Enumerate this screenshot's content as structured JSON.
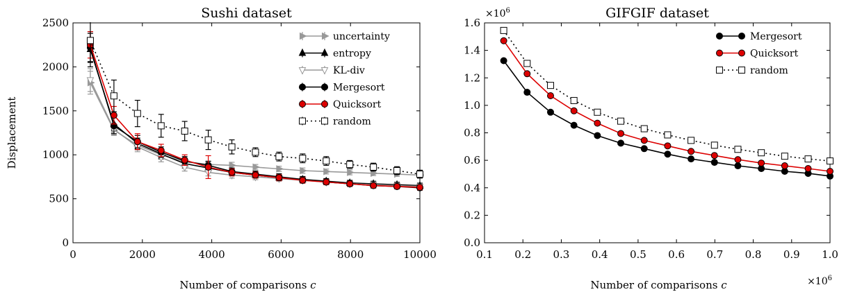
{
  "chart_data": [
    {
      "type": "line",
      "title": "Sushi dataset",
      "xlabel": "Number of comparisons",
      "xlabel_var": "c",
      "ylabel": "Displacement",
      "xlim": [
        0,
        10000
      ],
      "ylim": [
        0,
        2500
      ],
      "xticks": [
        0,
        2000,
        4000,
        6000,
        8000,
        10000
      ],
      "yticks": [
        0,
        500,
        1000,
        1500,
        2000,
        2500
      ],
      "grid": false,
      "legend_position": "top-right",
      "x": [
        500,
        1180,
        1860,
        2540,
        3220,
        3900,
        4580,
        5260,
        5940,
        6620,
        7300,
        7980,
        8660,
        9340,
        10000
      ],
      "series": [
        {
          "name": "uncertainty",
          "marker": "triangle-right",
          "color": "#999999",
          "line": "solid",
          "values": [
            1820,
            1280,
            1110,
            1000,
            920,
            890,
            880,
            860,
            840,
            820,
            810,
            800,
            790,
            780,
            770
          ],
          "err": [
            130,
            60,
            55,
            50,
            45,
            40,
            35,
            30,
            30,
            30,
            28,
            28,
            26,
            26,
            25
          ]
        },
        {
          "name": "entropy",
          "marker": "triangle-up",
          "color": "#000000",
          "line": "solid",
          "values": [
            2200,
            1350,
            1130,
            1010,
            900,
            850,
            800,
            770,
            740,
            720,
            700,
            680,
            670,
            660,
            650
          ],
          "err": [
            200,
            70,
            60,
            55,
            50,
            45,
            40,
            35,
            35,
            33,
            30,
            30,
            30,
            28,
            28
          ]
        },
        {
          "name": "KL-div",
          "marker": "triangle-down",
          "color": "#999999",
          "line": "solid",
          "values": [
            1850,
            1290,
            1090,
            970,
            860,
            800,
            770,
            750,
            730,
            710,
            690,
            670,
            660,
            650,
            640
          ],
          "err": [
            130,
            60,
            55,
            50,
            45,
            40,
            35,
            33,
            30,
            30,
            28,
            28,
            26,
            26,
            25
          ]
        },
        {
          "name": "Mergesort",
          "marker": "circle",
          "color": "#000000",
          "line": "solid",
          "values": [
            2220,
            1330,
            1150,
            1030,
            930,
            880,
            810,
            780,
            750,
            720,
            690,
            670,
            650,
            640,
            625
          ],
          "err": [
            160,
            90,
            70,
            60,
            50,
            45,
            40,
            35,
            35,
            33,
            30,
            30,
            28,
            28,
            28
          ]
        },
        {
          "name": "Quicksort",
          "marker": "circle",
          "color": "#dd0000",
          "line": "solid",
          "values": [
            2250,
            1450,
            1150,
            1050,
            940,
            860,
            800,
            770,
            740,
            710,
            690,
            670,
            650,
            640,
            630
          ],
          "err": [
            150,
            100,
            90,
            70,
            60,
            130,
            40,
            35,
            35,
            33,
            30,
            30,
            28,
            28,
            28
          ]
        },
        {
          "name": "random",
          "marker": "square-open",
          "color": "#000000",
          "line": "dotted",
          "values": [
            2300,
            1670,
            1470,
            1330,
            1270,
            1170,
            1090,
            1030,
            980,
            960,
            930,
            890,
            860,
            820,
            780
          ],
          "err": [
            250,
            180,
            150,
            130,
            110,
            110,
            80,
            50,
            50,
            50,
            50,
            45,
            45,
            45,
            45
          ]
        }
      ]
    },
    {
      "type": "line",
      "title": "GIFGIF dataset",
      "xlabel": "Number of comparisons",
      "xlabel_var": "c",
      "ylabel": "",
      "x_multiplier": "×10",
      "x_multiplier_exp": "6",
      "y_multiplier": "×10",
      "y_multiplier_exp": "6",
      "xlim": [
        0.1,
        1.0
      ],
      "ylim": [
        0.0,
        1.6
      ],
      "xticks": [
        "0.1",
        "0.2",
        "0.3",
        "0.4",
        "0.5",
        "0.6",
        "0.7",
        "0.8",
        "0.9",
        "1.0"
      ],
      "yticks": [
        "0.0",
        "0.2",
        "0.4",
        "0.6",
        "0.8",
        "1.0",
        "1.2",
        "1.4",
        "1.6"
      ],
      "grid": false,
      "legend_position": "top-right",
      "x": [
        0.15,
        0.211,
        0.272,
        0.333,
        0.394,
        0.455,
        0.516,
        0.577,
        0.638,
        0.699,
        0.76,
        0.821,
        0.882,
        0.943,
        1.0
      ],
      "series": [
        {
          "name": "Mergesort",
          "marker": "circle",
          "color": "#000000",
          "line": "solid",
          "values": [
            1.325,
            1.095,
            0.95,
            0.855,
            0.78,
            0.725,
            0.685,
            0.645,
            0.61,
            0.585,
            0.56,
            0.54,
            0.52,
            0.505,
            0.485
          ]
        },
        {
          "name": "Quicksort",
          "marker": "circle",
          "color": "#dd0000",
          "line": "solid",
          "values": [
            1.47,
            1.23,
            1.07,
            0.96,
            0.87,
            0.795,
            0.745,
            0.705,
            0.665,
            0.635,
            0.605,
            0.58,
            0.56,
            0.54,
            0.52
          ]
        },
        {
          "name": "random",
          "marker": "square-open",
          "color": "#000000",
          "line": "dotted",
          "values": [
            1.545,
            1.305,
            1.145,
            1.035,
            0.95,
            0.885,
            0.83,
            0.785,
            0.745,
            0.71,
            0.68,
            0.655,
            0.63,
            0.61,
            0.595
          ]
        }
      ]
    }
  ]
}
